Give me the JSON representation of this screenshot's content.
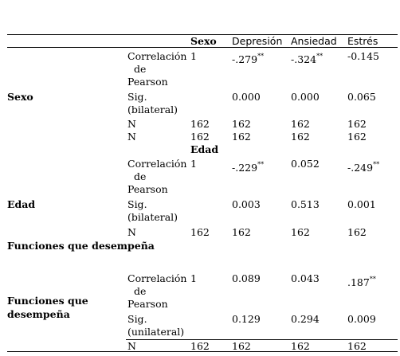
{
  "header": {
    "c1": "Sexo",
    "c2": "Depresión",
    "c3": "Ansiedad",
    "c4": "Estrés"
  },
  "sexo": {
    "label": "Sexo",
    "corr_label": [
      "Correlación",
      "de",
      "Pearson"
    ],
    "corr": [
      "1",
      "-.279",
      "-.324",
      "-0.145"
    ],
    "corr_sup": [
      "**",
      "**"
    ],
    "sig_label": [
      "Sig.",
      "(bilateral)"
    ],
    "sig": [
      "0.000",
      "0.000",
      "0.065"
    ],
    "n_label": "N",
    "n1": [
      "162",
      "162",
      "162",
      "162"
    ],
    "n2": [
      "162",
      "162",
      "162",
      "162"
    ]
  },
  "edad": {
    "header": "Edad",
    "label": "Edad",
    "corr_label": [
      "Correlación",
      "de",
      "Pearson"
    ],
    "corr": [
      "1",
      "-.229",
      "0.052",
      "-.249"
    ],
    "corr_sup": [
      "**",
      "**"
    ],
    "sig_label": [
      "Sig.",
      "(bilateral)"
    ],
    "sig": [
      "0.003",
      "0.513",
      "0.001"
    ],
    "n_label": "N",
    "n": [
      "162",
      "162",
      "162",
      "162"
    ]
  },
  "funciones": {
    "header": "Funciones que desempeña",
    "label": [
      "Funciones que",
      "desempeña"
    ],
    "corr_label": [
      "Correlación",
      "de",
      "Pearson"
    ],
    "corr": [
      "1",
      "0.089",
      "0.043",
      ".187"
    ],
    "corr_sup": "**",
    "sig_label": [
      "Sig.",
      "(unilateral)"
    ],
    "sig": [
      "0.129",
      "0.294",
      "0.009"
    ],
    "n_label": "N",
    "n": [
      "162",
      "162",
      "162",
      "162"
    ]
  }
}
